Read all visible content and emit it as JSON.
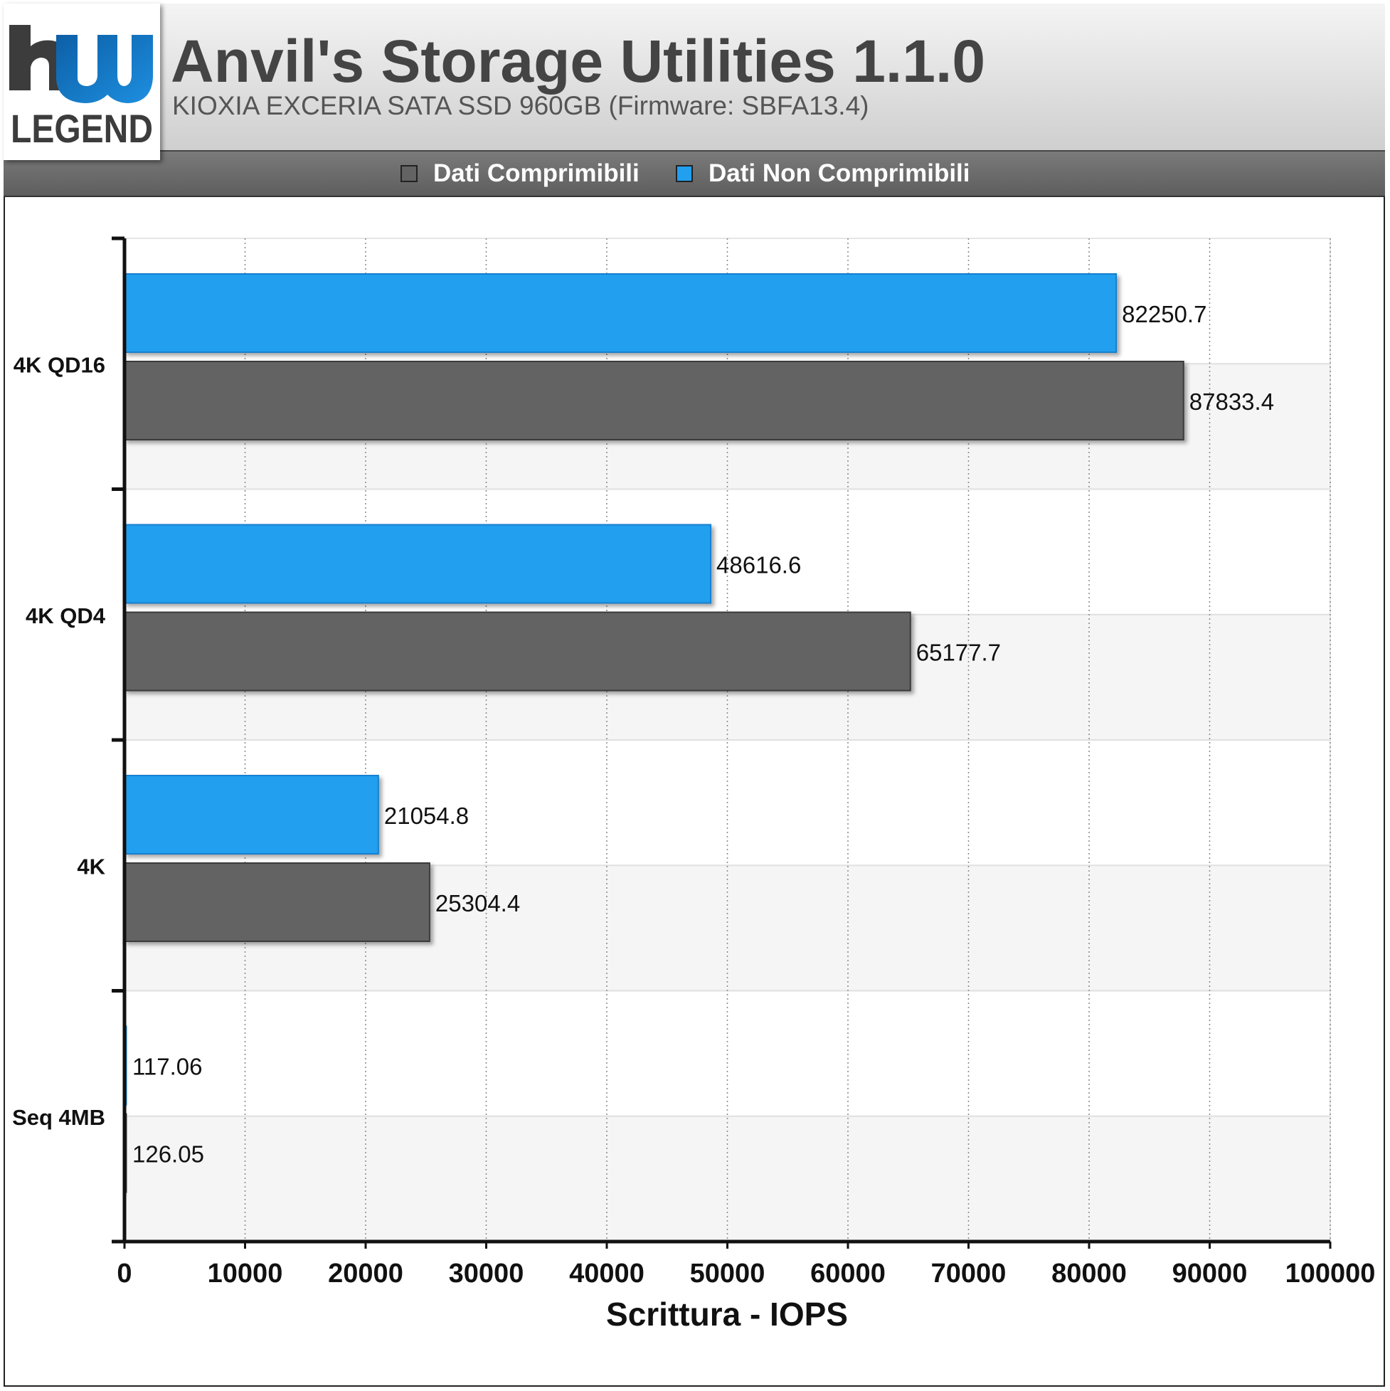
{
  "header": {
    "title": "Anvil's Storage Utilities 1.1.0",
    "subtitle": "KIOXIA EXCERIA SATA SSD 960GB (Firmware: SBFA13.4)",
    "logo_text": "LEGEND"
  },
  "colors": {
    "compressible": "#636363",
    "incompressible": "#239fef"
  },
  "chart_data": {
    "type": "bar",
    "orientation": "horizontal",
    "categories": [
      "4K QD16",
      "4K QD4",
      "4K",
      "Seq 4MB"
    ],
    "series": [
      {
        "name": "Dati Non Comprimibili",
        "values": [
          82250.7,
          48616.6,
          21054.8,
          117.06
        ],
        "labels": [
          "82250.7",
          "48616.6",
          "21054.8",
          "117.06"
        ]
      },
      {
        "name": "Dati Comprimibili",
        "values": [
          87833.4,
          65177.7,
          25304.4,
          126.05
        ],
        "labels": [
          "87833.4",
          "65177.7",
          "25304.4",
          "126.05"
        ]
      }
    ],
    "legend": [
      "Dati Comprimibili",
      "Dati Non Comprimibili"
    ],
    "legend_position": "top",
    "xlabel": "Scrittura - IOPS",
    "xlim": [
      0,
      100000
    ],
    "xticks": [
      "0",
      "10000",
      "20000",
      "30000",
      "40000",
      "50000",
      "60000",
      "70000",
      "80000",
      "90000",
      "100000"
    ],
    "grid": true
  }
}
